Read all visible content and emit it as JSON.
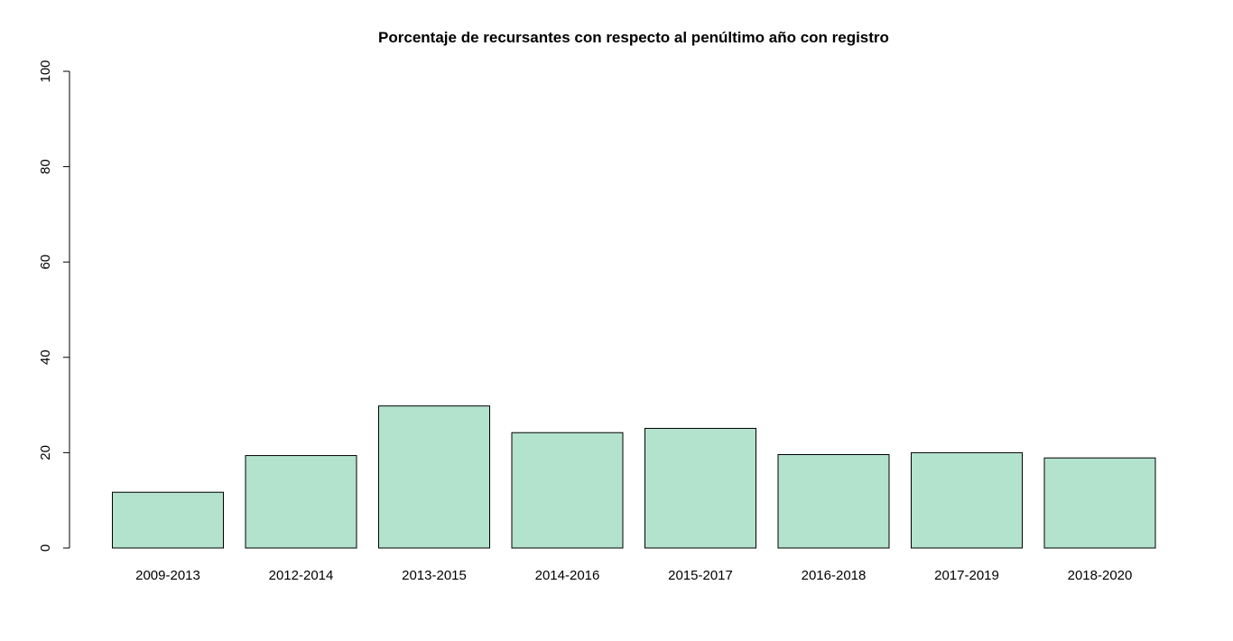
{
  "chart_data": {
    "type": "bar",
    "title": "Porcentaje de recursantes con respecto al penúltimo año con registro",
    "xlabel": "",
    "ylabel": "",
    "categories": [
      "2009-2013",
      "2012-2014",
      "2013-2015",
      "2014-2016",
      "2015-2017",
      "2016-2018",
      "2017-2019",
      "2018-2020"
    ],
    "values": [
      11.7,
      19.4,
      29.8,
      24.2,
      25.1,
      19.6,
      20.0,
      18.9
    ],
    "ylim": [
      0,
      100
    ],
    "yticks": [
      "0",
      "20",
      "40",
      "60",
      "80",
      "100"
    ],
    "grid": false,
    "bar_color": "#b3e2cd",
    "bar_border_color": "#000000"
  }
}
